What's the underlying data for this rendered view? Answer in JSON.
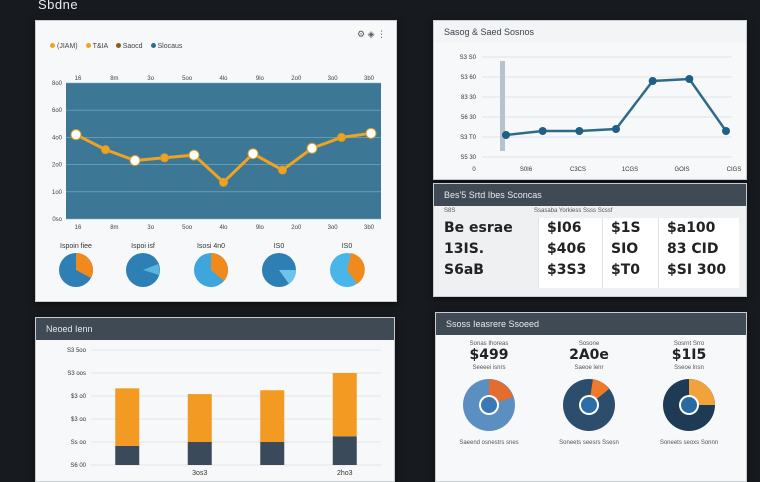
{
  "app": {
    "title": "Sbdne"
  },
  "line_panel": {
    "legend": [
      "(JIAM)",
      "T&IA",
      "Saocd",
      "Slocaus"
    ],
    "legend_colors": [
      "#f0a323",
      "#f0a323",
      "#8b5d1d",
      "#2c6e8f"
    ],
    "y_ticks": [
      "8o0",
      "6o0",
      "4o0",
      "2o0",
      "1o0",
      "0so"
    ],
    "x_ticks": [
      "16",
      "8m",
      "3o",
      "5oo",
      "4lo",
      "9lo",
      "2o0",
      "3o0",
      "3b0"
    ],
    "donut_labels": [
      "Ispoin fiee",
      "Ispoi isf",
      "Isosi 4n0",
      "IS0",
      "IS0"
    ]
  },
  "chart_data": [
    {
      "type": "line",
      "title": "",
      "series": [
        {
          "values": [
            6.2,
            5.1,
            4.3,
            4.5,
            4.7,
            2.7,
            4.8,
            3.6,
            5.2,
            6.0,
            6.3
          ]
        }
      ],
      "ylim": [
        0,
        10
      ],
      "colors": [
        "#f0a323"
      ],
      "plot_background": "#3c7896"
    },
    {
      "type": "line",
      "title": "",
      "series": [
        {
          "values": [
            2.2,
            2.6,
            2.6,
            2.8,
            7.6,
            7.8,
            2.6
          ]
        }
      ],
      "ylim": [
        0,
        10
      ],
      "colors": [
        "#2e6b88"
      ]
    },
    {
      "type": "bar",
      "title": "Neoed Ienn",
      "categories": [
        "",
        "3os3",
        "",
        "2ho3"
      ],
      "series": [
        {
          "name": "",
          "values": [
            3.0,
            2.5,
            2.7,
            3.3
          ]
        },
        {
          "name": "",
          "values": [
            1.0,
            1.2,
            1.2,
            1.5
          ]
        }
      ],
      "colors": [
        "#f29a22",
        "#3a4a5a"
      ],
      "ylim": [
        0,
        6
      ]
    }
  ],
  "mini_line_panel": {
    "title": "Sasog & Saed Sosnos",
    "y_ticks": [
      "S3 S0",
      "S3 60",
      "83 30",
      "56 30",
      "S3 T0",
      "S5 30"
    ],
    "x_ticks": [
      "0",
      "S0I6",
      "C3CS",
      "1CGS",
      "GOIS",
      "CIGS"
    ]
  },
  "price_panel": {
    "title": "Bes'5 Srtd Ibes Sconcas",
    "subheader": "S8S",
    "subheader_right": "Ssasaba Yorkiess Ssss Scssf",
    "col1": [
      "Be esrae",
      "13IS.",
      "S6aB"
    ],
    "col2": [
      "$I06",
      "$406",
      "$3S3"
    ],
    "col3": [
      "$1S",
      "SIO",
      "$T0"
    ],
    "col4": [
      "$a100",
      "83 CID",
      "$SI 300"
    ]
  },
  "bar_panel": {
    "title": "Neoed Ienn",
    "y_ticks": [
      "S3 5oo",
      "S3 oos",
      "$3 o0",
      "$3 oo",
      "Ss oo",
      "S6 00"
    ],
    "x_ticks": [
      "",
      "3os3",
      "",
      "2ho3"
    ]
  },
  "stats_panel": {
    "title": "Ssoss Ieasrere Ssoeed",
    "stats": [
      {
        "sub": "Sonas Ihoreas",
        "value": "$499",
        "cap": "Seeeei isnrs",
        "foot": "Saeend osnestrs snes"
      },
      {
        "sub": "Sosone",
        "value": "2A0e",
        "cap": "Saeoe lenr",
        "foot": "Soneets seesrs Ssesn"
      },
      {
        "sub": "Sosrnt Srro",
        "value": "$1I5",
        "cap": "Sseoe lnsn",
        "foot": "Soneets seoxs Sonnn"
      }
    ]
  }
}
